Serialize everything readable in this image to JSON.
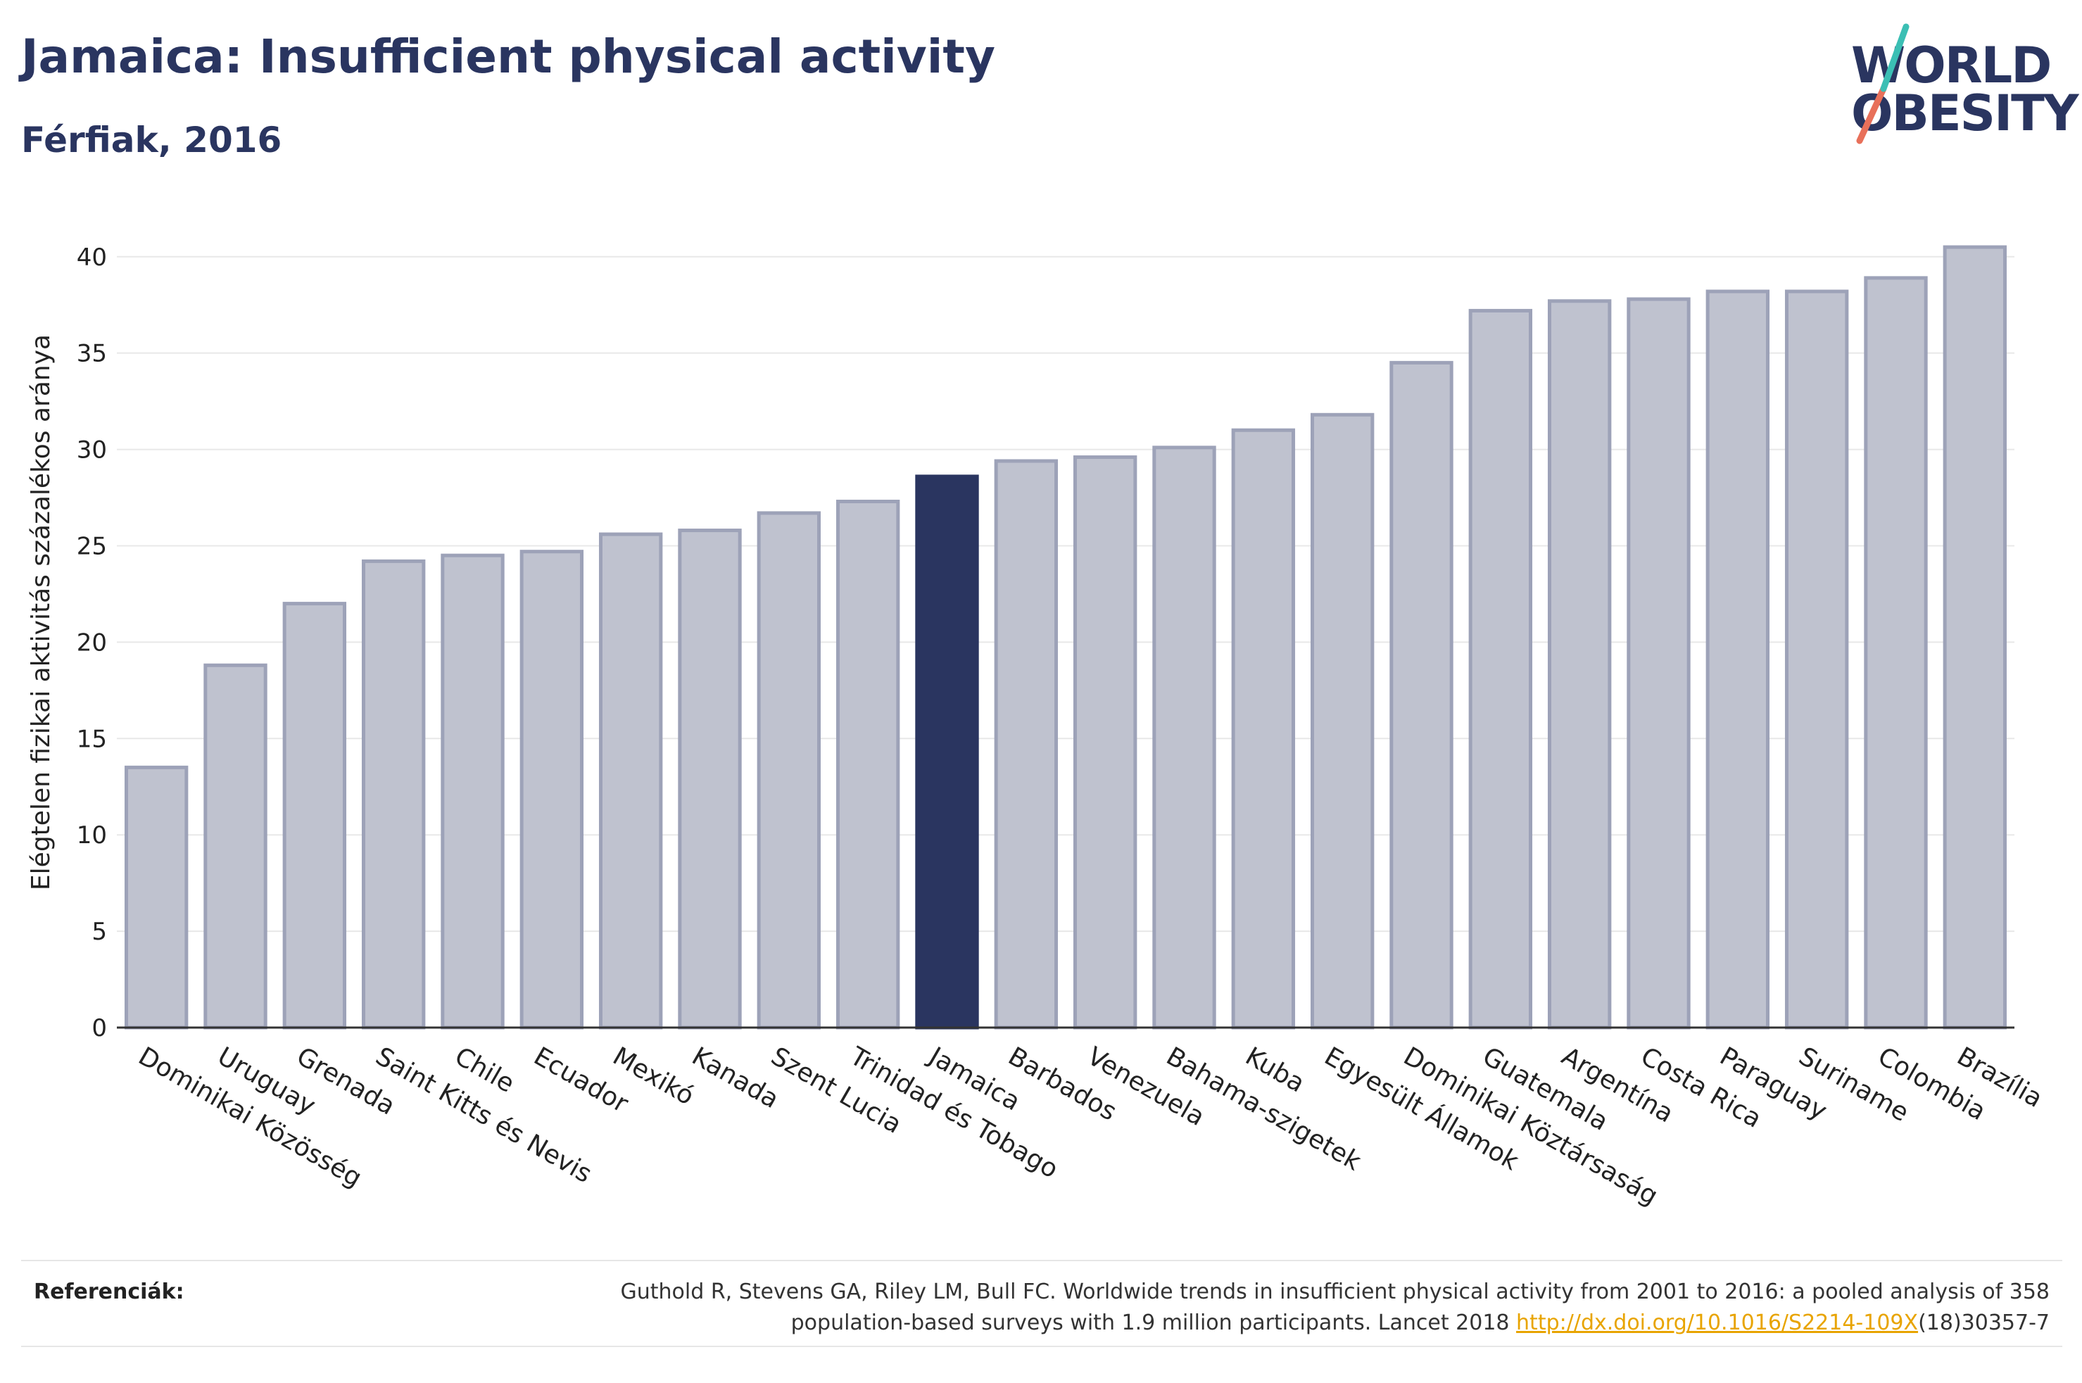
{
  "header": {
    "title": "Jamaica: Insufficient physical activity",
    "subtitle": "Férfiak, 2016"
  },
  "logo": {
    "line1": "WORLD",
    "line2": "OBESITY",
    "accent_colors": [
      "#e8705a",
      "#3bbfb4"
    ]
  },
  "references": {
    "label": "Referenciák:",
    "text_line1": "Guthold R, Stevens GA, Riley LM, Bull FC. Worldwide trends in insufficient physical activity from 2001 to 2016: a pooled analysis of 358",
    "text_line2_prefix": "population-based surveys with 1.9 million participants. Lancet 2018 ",
    "link": "http://dx.doi.org/10.1016/S2214-109X",
    "text_line2_suffix": "(18)30357-7"
  },
  "colors": {
    "bar": "#bfc2cf",
    "bar_stroke": "#9da2b8",
    "highlight": "#2a3560",
    "title": "#2a3560",
    "grid": "#e8e8e8"
  },
  "chart_data": {
    "type": "bar",
    "title": "Jamaica: Insufficient physical activity",
    "subtitle": "Férfiak, 2016",
    "xlabel": "",
    "ylabel": "Elégtelen fizikai aktivitás százalékos aránya",
    "ylim": [
      0,
      42
    ],
    "yticks": [
      0,
      5,
      10,
      15,
      20,
      25,
      30,
      35,
      40
    ],
    "grid": true,
    "highlight": "Jamaica",
    "categories": [
      "Dominikai Közösség",
      "Uruguay",
      "Grenada",
      "Saint Kitts és Nevis",
      "Chile",
      "Ecuador",
      "Mexikó",
      "Kanada",
      "Szent Lucia",
      "Trinidad és Tobago",
      "Jamaica",
      "Barbados",
      "Venezuela",
      "Bahama-szigetek",
      "Kuba",
      "Egyesült Államok",
      "Dominikai Köztársaság",
      "Guatemala",
      "Argentína",
      "Costa Rica",
      "Paraguay",
      "Suriname",
      "Colombia",
      "Brazília"
    ],
    "values": [
      13.5,
      18.8,
      22.0,
      24.2,
      24.5,
      24.7,
      25.6,
      25.8,
      26.7,
      27.3,
      28.6,
      29.4,
      29.6,
      30.1,
      31.0,
      31.8,
      34.5,
      37.2,
      37.7,
      37.8,
      38.2,
      38.2,
      38.9,
      40.5
    ]
  }
}
